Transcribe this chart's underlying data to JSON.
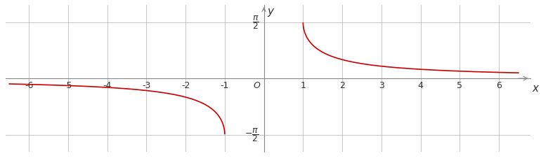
{
  "xlim": [
    -6.6,
    6.8
  ],
  "ylim": [
    -2.05,
    2.05
  ],
  "x_ticks": [
    -6,
    -5,
    -4,
    -3,
    -2,
    -1,
    1,
    2,
    3,
    4,
    5,
    6
  ],
  "pi_half": 1.5707963267948966,
  "curve_color": "#cc0000",
  "line_width": 1.2,
  "background_color": "#ffffff",
  "grid_color": "#b0b0b0",
  "axis_color": "#888888",
  "tick_fontsize": 9,
  "label_fontsize": 11,
  "origin_label": "O"
}
